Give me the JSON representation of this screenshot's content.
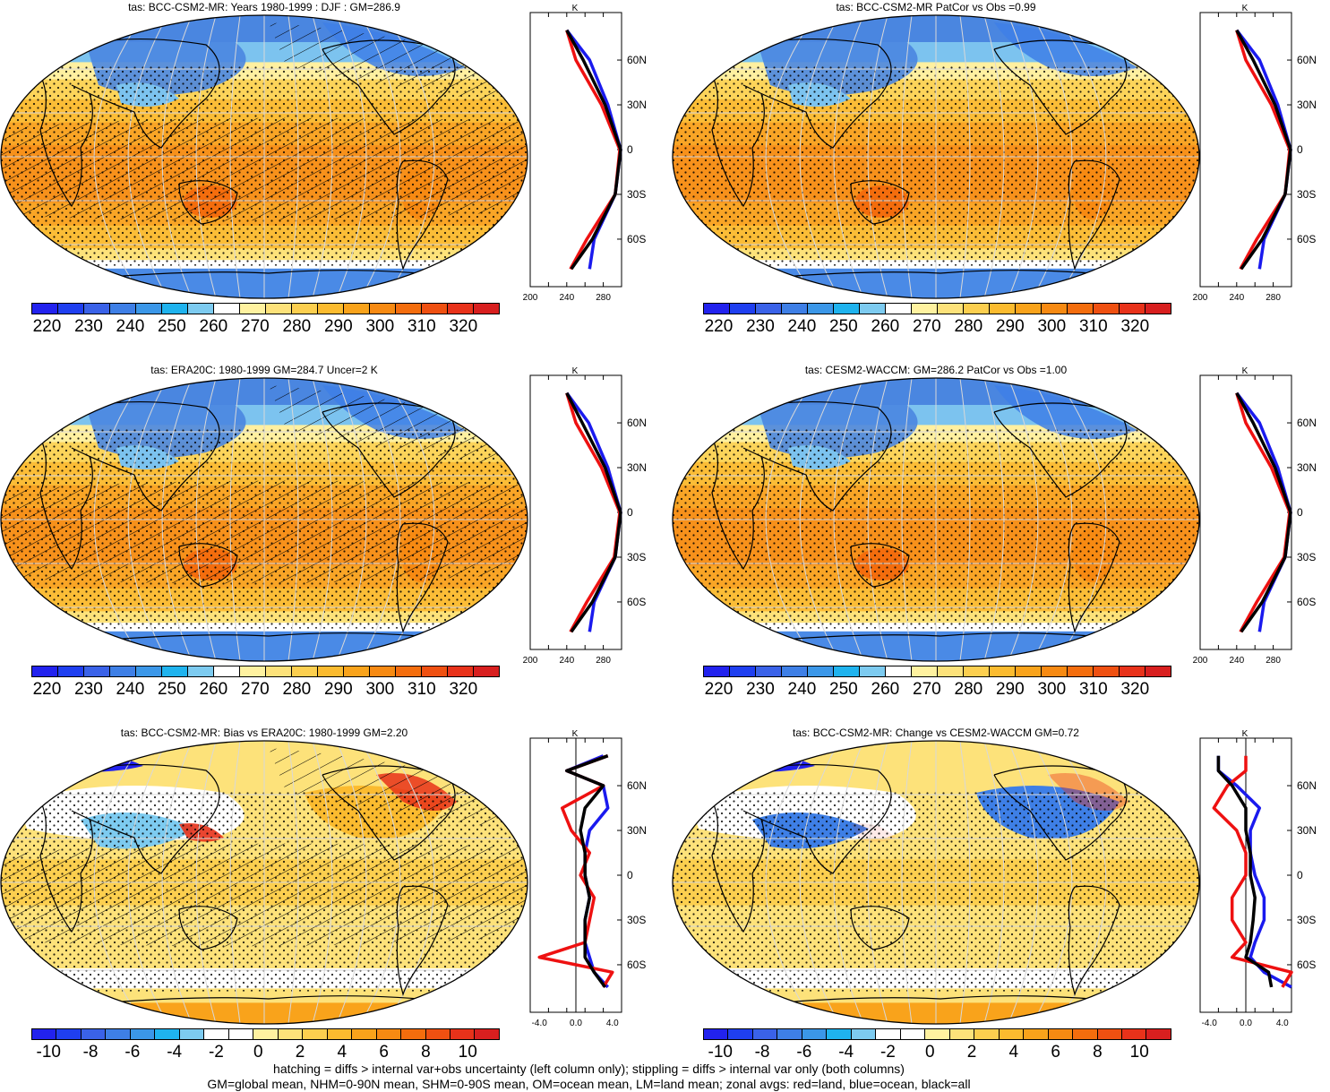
{
  "panels": [
    {
      "title": "tas: BCC-CSM2-MR: Years 1980-1999 : DJF : GM=286.9",
      "kind": "abs",
      "hatch": true
    },
    {
      "title": "tas: BCC-CSM2-MR PatCor vs Obs =0.99",
      "kind": "abs",
      "hatch": false
    },
    {
      "title": "tas: ERA20C: 1980-1999 GM=284.7 Uncer=2 K",
      "kind": "abs",
      "hatch": true
    },
    {
      "title": "tas: CESM2-WACCM: GM=286.2 PatCor vs Obs =1.00",
      "kind": "abs",
      "hatch": false
    },
    {
      "title": "tas: BCC-CSM2-MR: Bias vs ERA20C: 1980-1999 GM=2.20",
      "kind": "diff",
      "hatch": true
    },
    {
      "title": "tas: BCC-CSM2-MR: Change vs CESM2-WACCM GM=0.72",
      "kind": "diff",
      "hatch": false
    }
  ],
  "colorbars": {
    "abs": {
      "labels": [
        "220",
        "230",
        "240",
        "250",
        "260",
        "270",
        "280",
        "290",
        "300",
        "310",
        "320"
      ],
      "colors": [
        "#2222ee",
        "#1f3ff0",
        "#3a62e8",
        "#3e7fe6",
        "#3b97e8",
        "#1fb3ee",
        "#7dcbf0",
        "#ffffff",
        "#fff2a0",
        "#fde27a",
        "#fccf4f",
        "#fbbb2f",
        "#f9a31b",
        "#f78a12",
        "#f46d0d",
        "#ef5011",
        "#e8321a",
        "#d81f1f"
      ]
    },
    "diff": {
      "labels": [
        "-10",
        "-8",
        "-6",
        "-4",
        "-2",
        "0",
        "2",
        "4",
        "6",
        "8",
        "10"
      ],
      "colors": [
        "#2222ee",
        "#1f3ff0",
        "#3a62e8",
        "#3e7fe6",
        "#3b97e8",
        "#1fb3ee",
        "#7dcbf0",
        "#ffffff",
        "#ffffff",
        "#fff2a0",
        "#fde27a",
        "#fccf4f",
        "#fbbb2f",
        "#f9a31b",
        "#f78a12",
        "#f46d0d",
        "#ef5011",
        "#e8321a",
        "#d81f1f"
      ]
    }
  },
  "zonal": {
    "unit": "K",
    "lat_labels": [
      "60N",
      "30N",
      "0",
      "30S",
      "60S"
    ],
    "abs_xticks": [
      "200",
      "240",
      "280"
    ],
    "diff_xticks": [
      "-4.0",
      "0.0",
      "4.0"
    ]
  },
  "footer": {
    "line1": "hatching = diffs > internal var+obs uncertainty (left column only); stippling = diffs > internal var only (both columns)",
    "line2": "GM=global mean, NHM=0-90N mean, SHM=0-90S mean, OM=ocean mean, LM=land mean; zonal avgs: red=land, blue=ocean, black=all"
  },
  "chart_data": [
    {
      "type": "heatmap",
      "title": "tas: BCC-CSM2-MR: Years 1980-1999 : DJF : GM=286.9",
      "colorbar_range": [
        220,
        320
      ],
      "zonal_mean_K": {
        "lat": [
          80,
          60,
          30,
          0,
          -30,
          -60,
          -80
        ],
        "land": [
          240,
          250,
          278,
          298,
          293,
          262,
          244
        ],
        "ocean": [
          240,
          265,
          285,
          299,
          293,
          270,
          265
        ],
        "all": [
          240,
          258,
          282,
          299,
          293,
          268,
          245
        ]
      }
    },
    {
      "type": "heatmap",
      "title": "tas: BCC-CSM2-MR PatCor vs Obs =0.99",
      "colorbar_range": [
        220,
        320
      ],
      "zonal_mean_K": {
        "lat": [
          80,
          60,
          30,
          0,
          -30,
          -60,
          -80
        ],
        "land": [
          240,
          250,
          278,
          298,
          293,
          262,
          244
        ],
        "ocean": [
          240,
          265,
          285,
          299,
          293,
          270,
          265
        ],
        "all": [
          240,
          258,
          282,
          299,
          293,
          268,
          245
        ]
      }
    },
    {
      "type": "heatmap",
      "title": "tas: ERA20C: 1980-1999 GM=284.7 Uncer=2 K",
      "colorbar_range": [
        220,
        320
      ],
      "zonal_mean_K": {
        "lat": [
          80,
          60,
          30,
          0,
          -30,
          -60,
          -80
        ],
        "land": [
          240,
          250,
          278,
          298,
          292,
          262,
          244
        ],
        "ocean": [
          240,
          264,
          285,
          299,
          293,
          270,
          265
        ],
        "all": [
          240,
          257,
          282,
          299,
          293,
          268,
          245
        ]
      }
    },
    {
      "type": "heatmap",
      "title": "tas: CESM2-WACCM: GM=286.2 PatCor vs Obs =1.00",
      "colorbar_range": [
        220,
        320
      ],
      "zonal_mean_K": {
        "lat": [
          80,
          60,
          30,
          0,
          -30,
          -60,
          -80
        ],
        "land": [
          240,
          250,
          278,
          298,
          292,
          262,
          244
        ],
        "ocean": [
          240,
          265,
          285,
          299,
          293,
          270,
          265
        ],
        "all": [
          240,
          258,
          282,
          299,
          293,
          268,
          245
        ]
      }
    },
    {
      "type": "heatmap",
      "title": "tas: BCC-CSM2-MR: Bias vs ERA20C: 1980-1999 GM=2.20",
      "colorbar_range": [
        -10,
        10
      ],
      "zonal_diff_K": {
        "lat": [
          80,
          70,
          60,
          45,
          30,
          15,
          0,
          -15,
          -30,
          -45,
          -55,
          -65,
          -75
        ],
        "land": [
          3.5,
          -1,
          3,
          -1.5,
          -0.5,
          1.5,
          0.5,
          2,
          1.5,
          1,
          -4,
          4,
          3
        ],
        "ocean": [
          3,
          -1,
          3,
          3.5,
          1.5,
          1,
          1,
          1.5,
          1,
          1,
          1.5,
          2,
          3.5
        ],
        "all": [
          3.5,
          -1,
          3,
          1,
          0.5,
          1,
          1,
          1.5,
          1,
          1,
          1,
          2,
          3.2
        ]
      }
    },
    {
      "type": "heatmap",
      "title": "tas: BCC-CSM2-MR: Change vs CESM2-WACCM GM=0.72",
      "colorbar_range": [
        -10,
        10
      ],
      "zonal_diff_K": {
        "lat": [
          80,
          70,
          60,
          45,
          30,
          15,
          0,
          -15,
          -30,
          -45,
          -55,
          -65,
          -75
        ],
        "land": [
          0,
          0,
          -2,
          -3.5,
          -1,
          0,
          0,
          -1.5,
          -1.5,
          0,
          -1.5,
          5,
          4
        ],
        "ocean": [
          -3,
          -3,
          -1,
          1.5,
          0.5,
          0.5,
          1,
          2,
          2,
          1,
          0.5,
          2,
          5
        ],
        "all": [
          -3,
          -3,
          -1.5,
          0,
          0,
          0.5,
          0.5,
          1,
          0.8,
          0.5,
          0,
          2.5,
          2.8
        ]
      }
    }
  ]
}
